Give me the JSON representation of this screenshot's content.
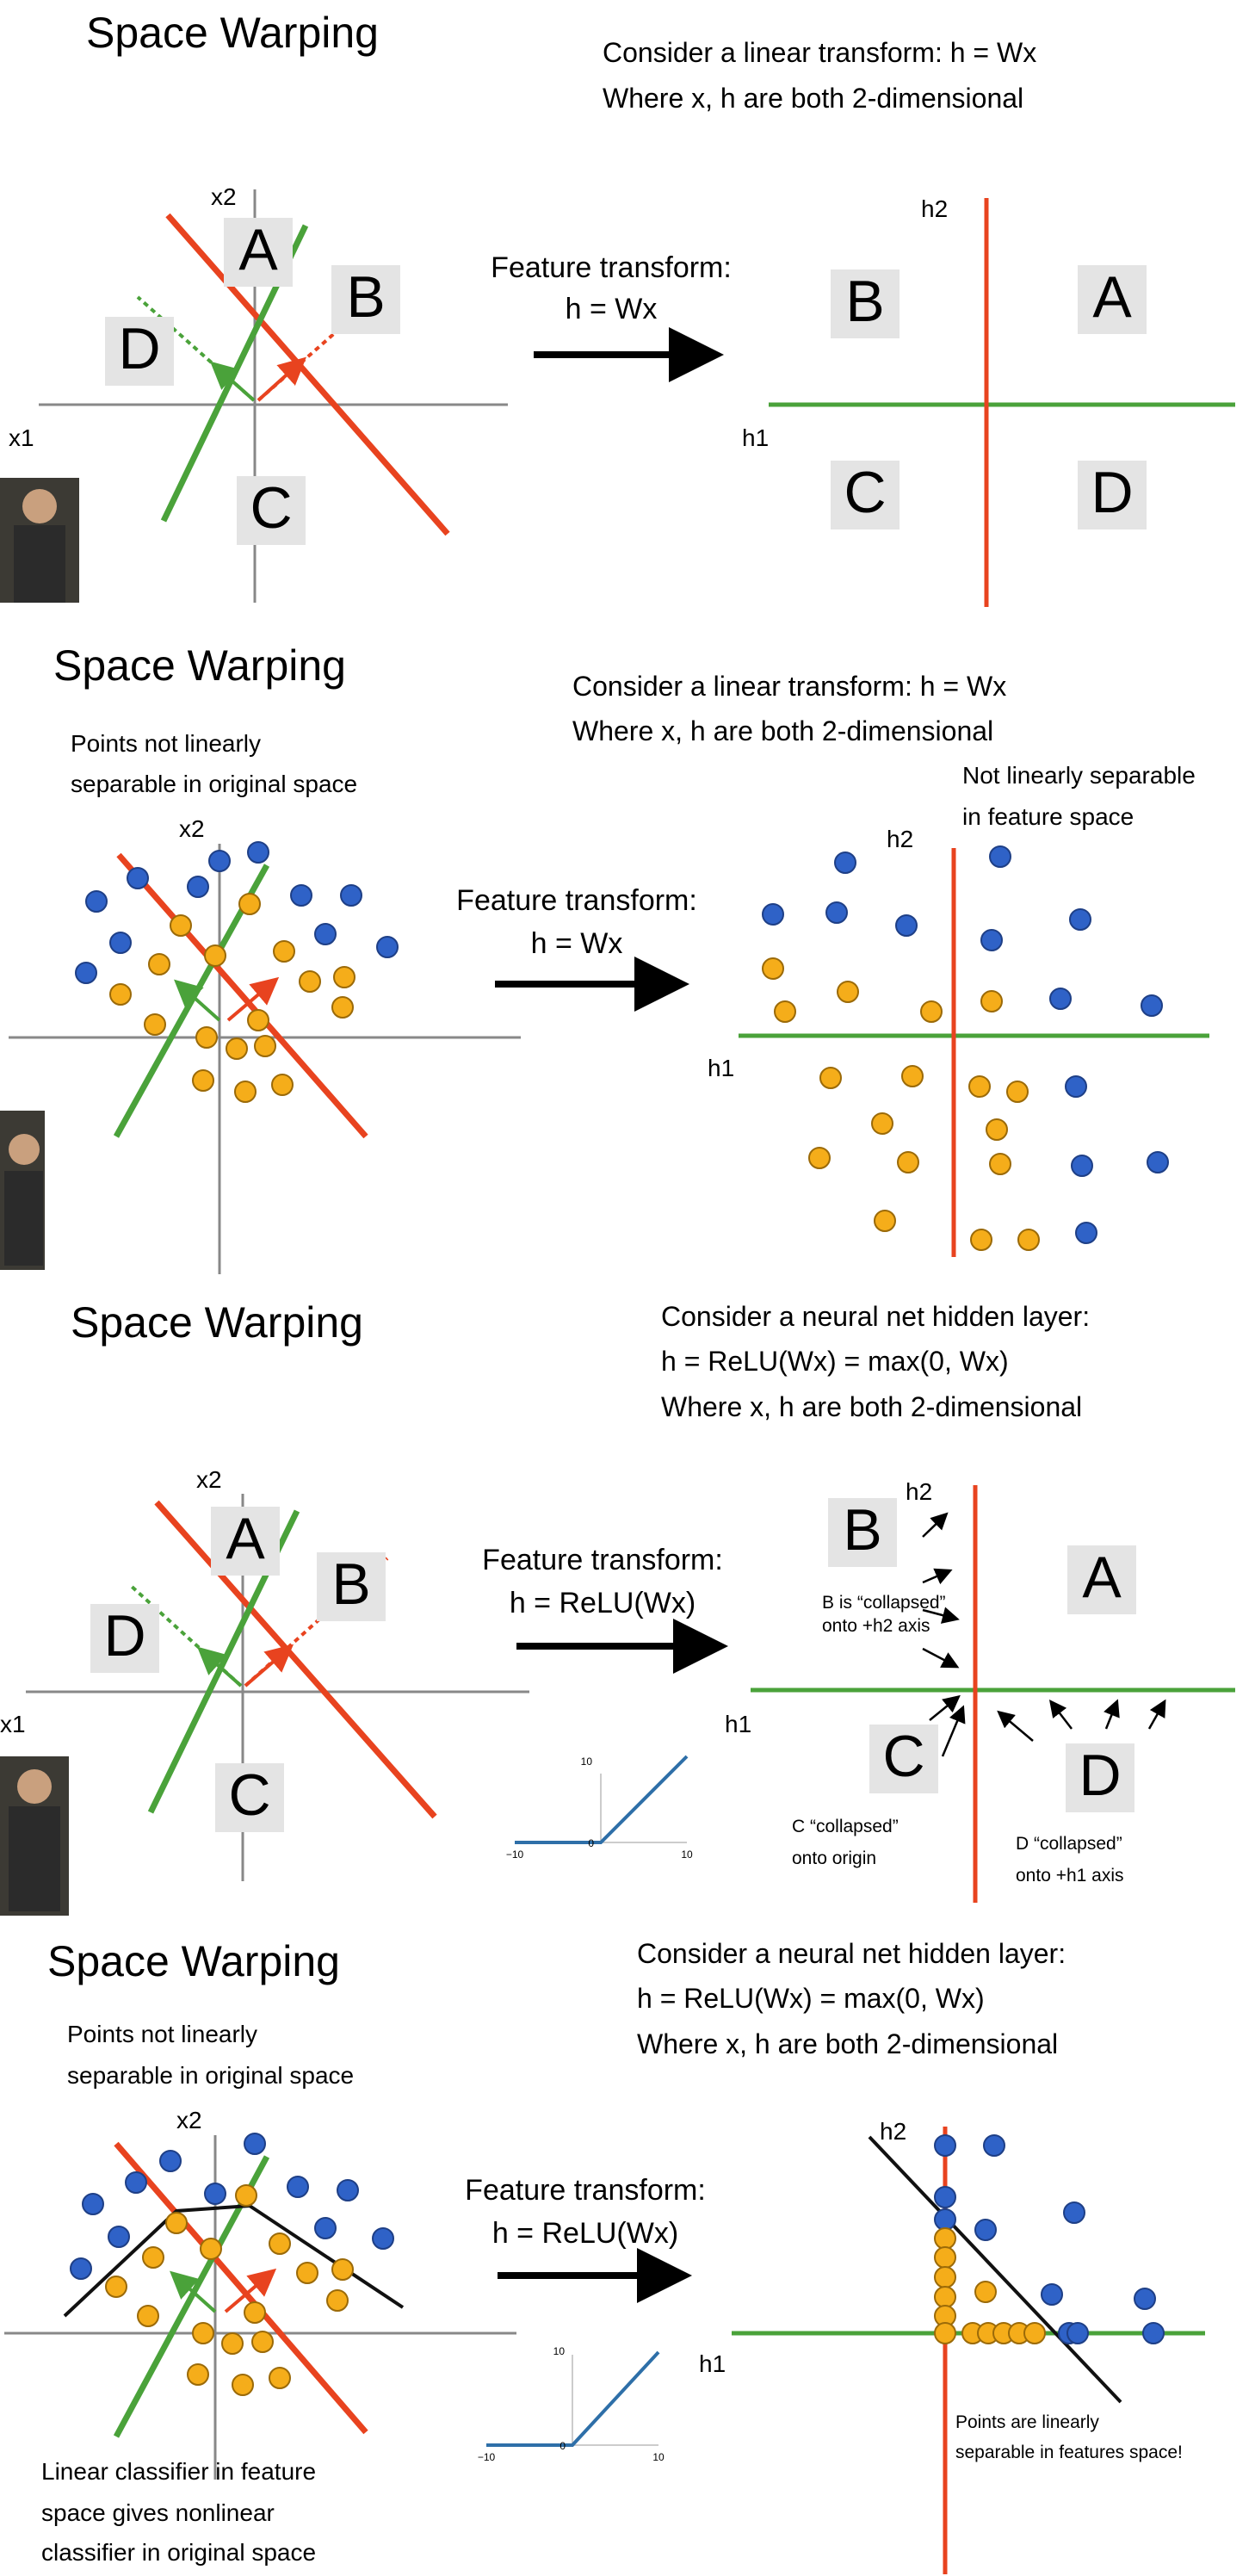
{
  "colors": {
    "orange_line": "#e8431f",
    "green_line": "#4aa23a",
    "blue_point": "#2f62c7",
    "orange_point": "#f5ad1a",
    "letter_box": "#e4e4e4",
    "relu_curve": "#2e6fa8",
    "arrow": "#000000"
  },
  "panels": [
    {
      "title": "Space Warping",
      "desc": [
        "Consider a linear transform: h = Wx",
        "Where x, h are both 2-dimensional"
      ],
      "x_axis_label": "x1",
      "y_axis_label": "x2",
      "transform_label": [
        "Feature transform:",
        "h = Wx"
      ],
      "h_axis_horizontal": "h1",
      "h_axis_vertical": "h2",
      "left_regions": [
        "A",
        "B",
        "C",
        "D"
      ],
      "right_regions": [
        "A",
        "B",
        "C",
        "D"
      ]
    },
    {
      "title": "Space Warping",
      "desc": [
        "Consider a linear transform: h = Wx",
        "Where x, h are both 2-dimensional"
      ],
      "left_note": [
        "Points not linearly",
        "separable in original space"
      ],
      "right_note": [
        "Not linearly separable",
        "in feature space"
      ],
      "y_axis_label": "x2",
      "transform_label": [
        "Feature transform:",
        "h = Wx"
      ],
      "h_axis_horizontal": "h1",
      "h_axis_vertical": "h2"
    },
    {
      "title": "Space Warping",
      "desc": [
        "Consider a neural net hidden layer:",
        "h = ReLU(Wx) = max(0, Wx)",
        "Where x, h are both 2-dimensional"
      ],
      "x_axis_label": "x1",
      "y_axis_label": "x2",
      "transform_label": [
        "Feature transform:",
        "h = ReLU(Wx)"
      ],
      "h_axis_horizontal": "h1",
      "h_axis_vertical": "h2",
      "left_regions": [
        "A",
        "B",
        "C",
        "D"
      ],
      "right_regions": [
        "A",
        "B",
        "C",
        "D"
      ],
      "notes": {
        "b": [
          "B is “collapsed”",
          "onto +h2 axis"
        ],
        "c": [
          "C “collapsed”",
          "onto origin"
        ],
        "d": [
          "D “collapsed”",
          "onto +h1 axis"
        ]
      },
      "relu_ticks": {
        "y_top": "10",
        "x_left": "−10",
        "x_right": "10",
        "origin": "0"
      }
    },
    {
      "title": "Space Warping",
      "desc": [
        "Consider a neural net hidden layer:",
        "h = ReLU(Wx) = max(0, Wx)",
        "Where x, h are both 2-dimensional"
      ],
      "left_note": [
        "Points not linearly",
        "separable in original space"
      ],
      "bottom_note": [
        "Linear classifier in feature",
        "space gives nonlinear",
        "classifier in original space"
      ],
      "right_note": [
        "Points are linearly",
        "separable in features space!"
      ],
      "y_axis_label": "x2",
      "transform_label": [
        "Feature transform:",
        "h = ReLU(Wx)"
      ],
      "h_axis_horizontal": "h1",
      "h_axis_vertical": "h2",
      "relu_ticks": {
        "y_top": "10",
        "x_left": "−10",
        "x_right": "10",
        "origin": "0"
      }
    }
  ]
}
